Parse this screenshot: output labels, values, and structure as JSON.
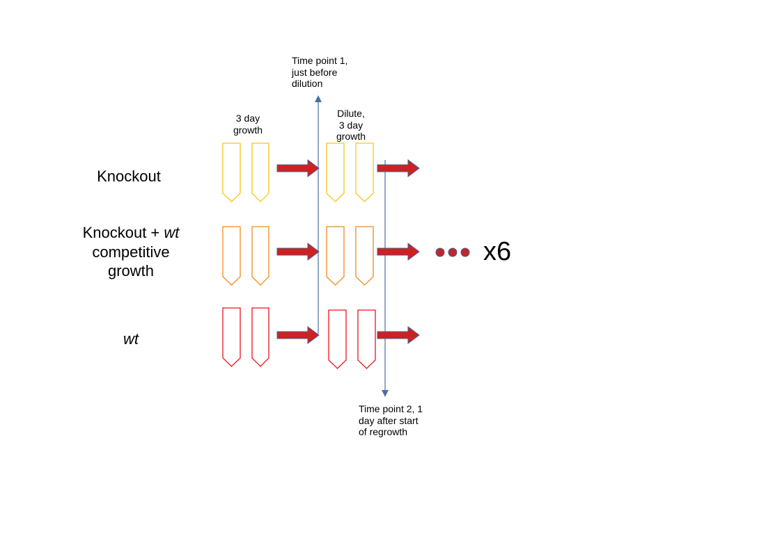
{
  "rows": [
    {
      "name_prefix": "Knockout",
      "name_italic": "",
      "line2": "",
      "line3": "",
      "tube_color": "#F5C518"
    },
    {
      "name_prefix": "Knockout + ",
      "name_italic": "wt",
      "line2": "competitive",
      "line3": "growth",
      "tube_color": "#F08A1E"
    },
    {
      "name_prefix": "",
      "name_italic": "wt",
      "line2": "",
      "line3": "",
      "tube_color": "#E8141E"
    }
  ],
  "growth_label": {
    "line1": "3 day",
    "line2": "growth"
  },
  "dilute_label": {
    "line1": "Dilute,",
    "line2": "3 day",
    "line3": "growth"
  },
  "timepoint1": {
    "line1": "Time point 1,",
    "line2": "just before",
    "line3": "dilution"
  },
  "timepoint2": {
    "line1": "Time point 2, 1",
    "line2": "day after start",
    "line3": "of regrowth"
  },
  "repeat_label": "x6",
  "colors": {
    "arrow_fill": "#CC2222",
    "arrow_stroke": "#4A5F8F",
    "axis_line": "#4A6FA5",
    "dot": "#C0272D"
  }
}
